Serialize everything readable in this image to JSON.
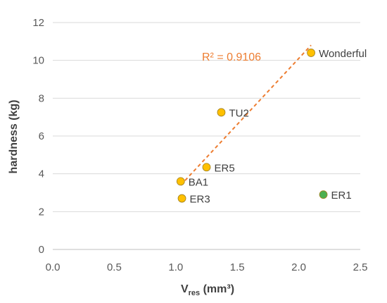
{
  "chart_data": {
    "type": "scatter",
    "xlabel": {
      "main": "V",
      "sub": "res",
      "unit": " (mm³)"
    },
    "ylabel": "hardness (kg)",
    "xlim": [
      0,
      2.5
    ],
    "ylim": [
      0,
      12
    ],
    "x_ticks": [
      "0.0",
      "0.5",
      "1.0",
      "1.5",
      "2.0",
      "2.5"
    ],
    "y_ticks": [
      "0",
      "2",
      "4",
      "6",
      "8",
      "10",
      "12"
    ],
    "grid": "horizontal",
    "legend": "none",
    "points": [
      {
        "label": "Wonderful",
        "x": 2.1,
        "y": 10.4,
        "color": "#FFC000"
      },
      {
        "label": "TU2",
        "x": 1.37,
        "y": 7.25,
        "color": "#FFC000"
      },
      {
        "label": "ER5",
        "x": 1.25,
        "y": 4.35,
        "color": "#FFC000"
      },
      {
        "label": "BA1",
        "x": 1.04,
        "y": 3.6,
        "color": "#FFC000"
      },
      {
        "label": "ER3",
        "x": 1.05,
        "y": 2.7,
        "color": "#FFC000"
      },
      {
        "label": "ER1",
        "x": 2.2,
        "y": 2.9,
        "color": "#4CAF50"
      }
    ],
    "trendline": {
      "x": [
        1.04,
        2.1
      ],
      "y": [
        3.4,
        10.8
      ],
      "color": "#ED7D31",
      "style": "dashed",
      "r2_label": "R² = 0.9106"
    },
    "colors": {
      "grid": "#D9D9D9",
      "axis": "#BFBFBF",
      "marker_edge": "#A08020"
    }
  }
}
